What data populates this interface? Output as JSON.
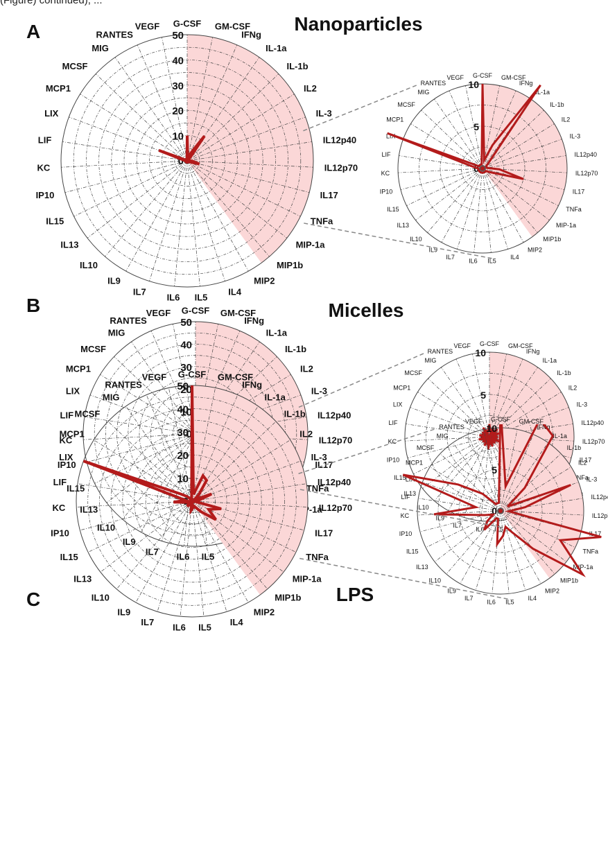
{
  "caption_fragment": "(Figure) continued), ...",
  "colors": {
    "accent": "#b31b1b",
    "highlight": "#fbd7d7",
    "grid": "#444444"
  },
  "chart_data": [
    {
      "type": "radar",
      "panel": "A",
      "title": "Nanoparticles",
      "scale": "large",
      "rlim": [
        0,
        50
      ],
      "ticks": [
        0,
        10,
        20,
        30,
        40,
        50
      ],
      "categories": [
        "G-CSF",
        "GM-CSF",
        "IFNg",
        "IL-1a",
        "IL-1b",
        "IL2",
        "IL-3",
        "IL12p40",
        "IL12p70",
        "IL17",
        "TNFa",
        "MIP-1a",
        "MIP1b",
        "MIP2",
        "IL4",
        "IL5",
        "IL6",
        "IL7",
        "IL9",
        "IL10",
        "IL13",
        "IL15",
        "IP10",
        "KC",
        "LIF",
        "LIX",
        "MCP1",
        "MCSF",
        "MIG",
        "RANTES",
        "VEGF"
      ],
      "values": [
        10,
        1,
        3,
        12,
        1,
        0.5,
        0.5,
        0.5,
        2,
        5,
        1,
        0.5,
        0.5,
        0.5,
        0.5,
        0.5,
        0.5,
        0.5,
        0.5,
        0.5,
        0.5,
        0.5,
        0.5,
        0.5,
        1,
        12,
        0.5,
        0.5,
        0.5,
        0.5,
        0.5
      ]
    },
    {
      "type": "radar",
      "panel": "A",
      "scale": "zoom",
      "rlim": [
        0,
        10
      ],
      "ticks": [
        0,
        5,
        10
      ],
      "categories": [
        "G-CSF",
        "GM-CSF",
        "IFNg",
        "IL-1a",
        "IL-1b",
        "IL2",
        "IL-3",
        "IL12p40",
        "IL12p70",
        "IL17",
        "TNFa",
        "MIP-1a",
        "MIP1b",
        "MIP2",
        "IL4",
        "IL5",
        "IL6",
        "IL7",
        "IL9",
        "IL10",
        "IL13",
        "IL15",
        "IP10",
        "KC",
        "LIF",
        "LIX",
        "MCP1",
        "MCSF",
        "MIG",
        "RANTES",
        "VEGF"
      ],
      "values": [
        10,
        1,
        3,
        12,
        1,
        0.5,
        0.5,
        0.5,
        2,
        5,
        1,
        0.5,
        0.5,
        0.5,
        0.5,
        0.5,
        0.5,
        0.5,
        0.5,
        0.5,
        0.5,
        0.5,
        0.5,
        0.5,
        1,
        12,
        0.5,
        0.5,
        0.5,
        0.5,
        0.5
      ]
    },
    {
      "type": "radar",
      "panel": "B",
      "title": "Micelles",
      "scale": "large",
      "rlim": [
        0,
        50
      ],
      "ticks": [
        0,
        10,
        20,
        30,
        40,
        50
      ],
      "categories": [
        "G-CSF",
        "GM-CSF",
        "IFNg",
        "IL-1a",
        "IL-1b",
        "IL2",
        "IL-3",
        "IL12p40",
        "IL12p70",
        "IL17",
        "TNFa",
        "MIP-1a",
        "MIP1b",
        "MIP2",
        "IL4",
        "IL5",
        "IL6",
        "IL7",
        "IL9",
        "IL10",
        "IL13",
        "IL15",
        "IP10",
        "KC",
        "LIF",
        "LIX",
        "MCP1",
        "MCSF",
        "MIG",
        "RANTES",
        "VEGF"
      ],
      "values": [
        1.5,
        0.5,
        1.2,
        0.5,
        1.3,
        0.5,
        1.2,
        0.5,
        1.0,
        0.5,
        1.3,
        0.5,
        1.0,
        0.5,
        1.2,
        0.5,
        1.5,
        0.5,
        1.2,
        0.5,
        1.0,
        0.5,
        1.3,
        0.5,
        1.2,
        0.5,
        1.0,
        0.5,
        1.3,
        0.5,
        0.8
      ]
    },
    {
      "type": "radar",
      "panel": "B",
      "scale": "zoom",
      "rlim": [
        0,
        10
      ],
      "ticks": [
        0,
        5,
        10
      ],
      "categories": [
        "G-CSF",
        "GM-CSF",
        "IFNg",
        "IL-1a",
        "IL-1b",
        "IL2",
        "IL-3",
        "IL12p40",
        "IL12p70",
        "IL17",
        "TNFa",
        "MIP-1a",
        "MIP1b",
        "MIP2",
        "IL4",
        "IL5",
        "IL6",
        "IL7",
        "IL9",
        "IL10",
        "IL13",
        "IL15",
        "IP10",
        "KC",
        "LIF",
        "LIX",
        "MCP1",
        "MCSF",
        "MIG",
        "RANTES",
        "VEGF"
      ],
      "values": [
        1.5,
        0.5,
        1.2,
        0.5,
        1.3,
        0.5,
        1.2,
        0.5,
        1.0,
        0.5,
        1.3,
        0.5,
        1.0,
        0.5,
        1.2,
        0.5,
        1.5,
        0.5,
        1.2,
        0.5,
        1.0,
        0.5,
        1.3,
        0.5,
        1.2,
        0.5,
        1.0,
        0.5,
        1.3,
        0.5,
        0.8
      ]
    },
    {
      "type": "radar",
      "panel": "C",
      "title": "LPS",
      "scale": "large",
      "rlim": [
        0,
        50
      ],
      "ticks": [
        0,
        10,
        20,
        30,
        40,
        50
      ],
      "categories": [
        "G-CSF",
        "GM-CSF",
        "IFNg",
        "IL-1a",
        "IL-1b",
        "IL2",
        "IL-3",
        "IL12p40",
        "IL12p70",
        "IL17",
        "TNFa",
        "MIP-1a",
        "MIP1b",
        "MIP2",
        "IL4",
        "IL5",
        "IL6",
        "IL7",
        "IL9",
        "IL10",
        "IL13",
        "IL15",
        "IP10",
        "KC",
        "LIF",
        "LIX",
        "MCP1",
        "MCSF",
        "MIG",
        "RANTES",
        "VEGF"
      ],
      "values": [
        50,
        3,
        12,
        11,
        4,
        1,
        9,
        3,
        1,
        13,
        8,
        13,
        6,
        3,
        2,
        3,
        4,
        1,
        1,
        3,
        2,
        1,
        2,
        8,
        3,
        50,
        6,
        3,
        1,
        1,
        1
      ]
    },
    {
      "type": "radar",
      "panel": "C",
      "scale": "zoom",
      "rlim": [
        0,
        10
      ],
      "ticks": [
        0,
        5,
        10
      ],
      "categories": [
        "G-CSF",
        "GM-CSF",
        "IFNg",
        "IL-1a",
        "IL-1b",
        "IL2",
        "IL-3",
        "IL12p40",
        "IL12p70",
        "IL17",
        "TNFa",
        "MIP-1a",
        "MIP1b",
        "MIP2",
        "IL4",
        "IL5",
        "IL6",
        "IL7",
        "IL9",
        "IL10",
        "IL13",
        "IL15",
        "IP10",
        "KC",
        "LIF",
        "LIX",
        "MCP1",
        "MCSF",
        "MIG",
        "RANTES",
        "VEGF"
      ],
      "values": [
        50,
        3,
        12,
        11,
        4,
        1,
        9,
        3,
        1,
        13,
        8,
        13,
        6,
        3,
        2,
        3,
        4,
        1,
        1,
        3,
        2,
        1,
        2,
        8,
        3,
        50,
        6,
        3,
        1,
        1,
        1
      ]
    }
  ]
}
